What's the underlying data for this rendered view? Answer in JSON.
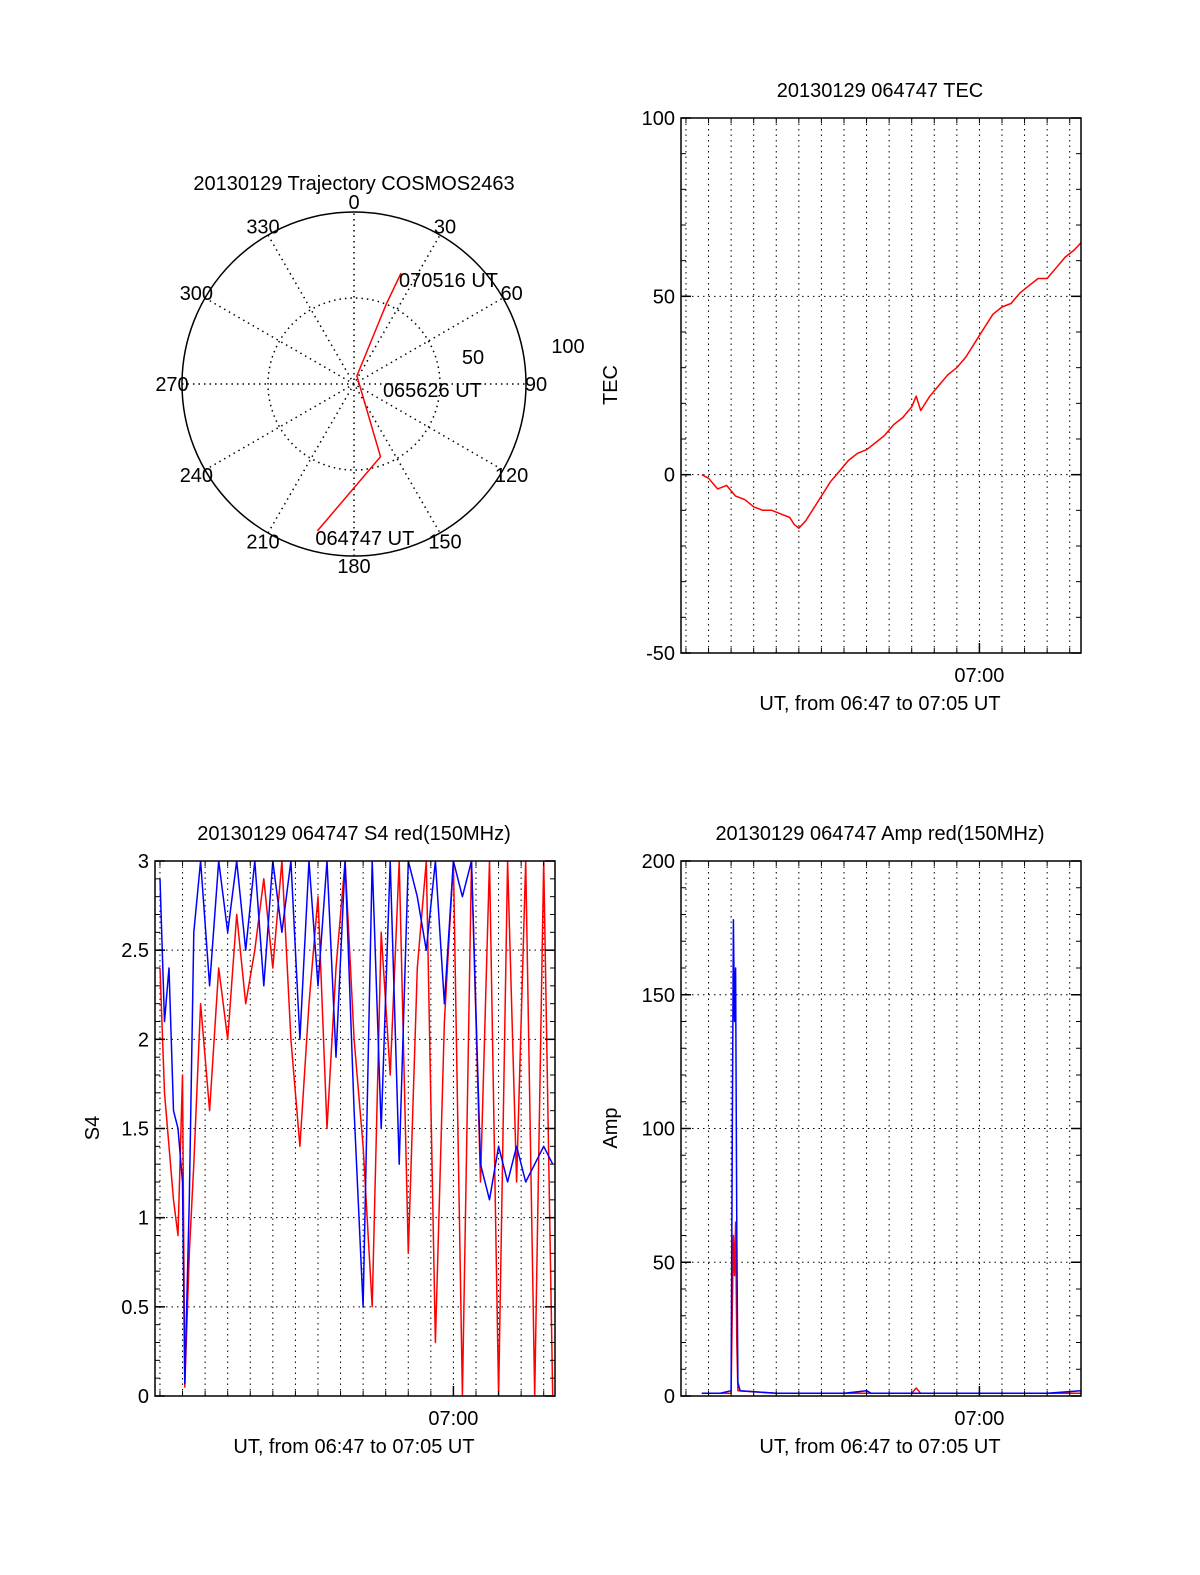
{
  "chart_data": [
    {
      "type": "polar",
      "title": "20130129 Trajectory COSMOS2463",
      "angle_labels": [
        "0",
        "30",
        "60",
        "90",
        "120",
        "150",
        "180",
        "210",
        "240",
        "270",
        "300",
        "330"
      ],
      "radial_labels": [
        "50",
        "100"
      ],
      "radial_max": 100,
      "series": [
        {
          "color": "#ff0000",
          "points": [
            {
              "az": 194,
              "r": 88
            },
            {
              "az": 160,
              "r": 45
            },
            {
              "az": 20,
              "r": 5
            },
            {
              "az": 22,
              "r": 50
            },
            {
              "az": 23,
              "r": 70
            }
          ]
        }
      ],
      "annotations": [
        {
          "text": "070516 UT",
          "az": 23,
          "r": 70
        },
        {
          "text": "065626 UT",
          "az": 88,
          "r": 18
        },
        {
          "text": "064747 UT",
          "az": 194,
          "r": 88
        }
      ]
    },
    {
      "type": "line",
      "title": "20130129 064747 TEC",
      "ylabel": "TEC",
      "xlabel": "UT, from 06:47 to 07:05 UT",
      "xlim": [
        406.78,
        424.5
      ],
      "ylim": [
        -50,
        100
      ],
      "yticks": [
        -50,
        0,
        50,
        100
      ],
      "xticks": [
        {
          "value": 420,
          "label": "07:00"
        }
      ],
      "grid": true,
      "series": [
        {
          "color": "#ff0000",
          "points": [
            [
              407.7,
              0
            ],
            [
              408.0,
              -1
            ],
            [
              408.4,
              -4
            ],
            [
              408.8,
              -3
            ],
            [
              409.2,
              -6
            ],
            [
              409.6,
              -7
            ],
            [
              410.0,
              -9
            ],
            [
              410.4,
              -10
            ],
            [
              410.8,
              -10
            ],
            [
              411.2,
              -11
            ],
            [
              411.6,
              -12
            ],
            [
              411.8,
              -14
            ],
            [
              412.0,
              -15
            ],
            [
              412.3,
              -13
            ],
            [
              412.6,
              -10
            ],
            [
              413.0,
              -6
            ],
            [
              413.4,
              -2
            ],
            [
              413.8,
              1
            ],
            [
              414.2,
              4
            ],
            [
              414.6,
              6
            ],
            [
              415.0,
              7
            ],
            [
              415.4,
              9
            ],
            [
              415.8,
              11
            ],
            [
              416.2,
              14
            ],
            [
              416.6,
              16
            ],
            [
              417.0,
              19
            ],
            [
              417.2,
              22
            ],
            [
              417.4,
              18
            ],
            [
              417.8,
              22
            ],
            [
              418.2,
              25
            ],
            [
              418.6,
              28
            ],
            [
              419.0,
              30
            ],
            [
              419.4,
              33
            ],
            [
              419.8,
              37
            ],
            [
              420.2,
              41
            ],
            [
              420.6,
              45
            ],
            [
              421.0,
              47
            ],
            [
              421.4,
              48
            ],
            [
              421.8,
              51
            ],
            [
              422.2,
              53
            ],
            [
              422.6,
              55
            ],
            [
              423.0,
              55
            ],
            [
              423.4,
              58
            ],
            [
              423.8,
              61
            ],
            [
              424.2,
              63
            ],
            [
              424.5,
              65
            ]
          ]
        }
      ]
    },
    {
      "type": "line",
      "title": "20130129 064747 S4 red(150MHz)",
      "ylabel": "S4",
      "xlabel": "UT, from 06:47 to 07:05 UT",
      "xlim": [
        406.78,
        424.5
      ],
      "ylim": [
        0,
        3
      ],
      "yticks": [
        0,
        0.5,
        1,
        1.5,
        2,
        2.5,
        3
      ],
      "ytick_labels": [
        "0",
        "0.5",
        "1",
        "1.5",
        "2",
        "2.5",
        "3"
      ],
      "xticks": [
        {
          "value": 420,
          "label": "07:00"
        }
      ],
      "grid": true,
      "series": [
        {
          "color": "#ff0000",
          "points": [
            [
              407.0,
              2.4
            ],
            [
              407.2,
              1.7
            ],
            [
              407.4,
              1.4
            ],
            [
              407.6,
              1.1
            ],
            [
              407.8,
              0.9
            ],
            [
              408.0,
              1.8
            ],
            [
              408.1,
              0.05
            ],
            [
              408.3,
              0.8
            ],
            [
              408.5,
              1.3
            ],
            [
              408.8,
              2.2
            ],
            [
              409.2,
              1.6
            ],
            [
              409.6,
              2.4
            ],
            [
              410.0,
              2.0
            ],
            [
              410.4,
              2.7
            ],
            [
              410.8,
              2.2
            ],
            [
              411.2,
              2.5
            ],
            [
              411.6,
              2.9
            ],
            [
              412.0,
              2.4
            ],
            [
              412.4,
              3.0
            ],
            [
              412.8,
              2.0
            ],
            [
              413.2,
              1.4
            ],
            [
              413.6,
              2.2
            ],
            [
              414.0,
              2.8
            ],
            [
              414.4,
              1.5
            ],
            [
              414.8,
              2.4
            ],
            [
              415.2,
              3.0
            ],
            [
              415.6,
              2.0
            ],
            [
              416.0,
              1.4
            ],
            [
              416.4,
              0.5
            ],
            [
              416.8,
              2.6
            ],
            [
              417.2,
              1.8
            ],
            [
              417.6,
              3.0
            ],
            [
              418.0,
              0.8
            ],
            [
              418.4,
              2.4
            ],
            [
              418.8,
              3.0
            ],
            [
              419.2,
              0.3
            ],
            [
              419.6,
              2.1
            ],
            [
              420.0,
              3.0
            ],
            [
              420.4,
              0.0
            ],
            [
              420.8,
              3.0
            ],
            [
              421.2,
              1.2
            ],
            [
              421.6,
              3.0
            ],
            [
              422.0,
              0.0
            ],
            [
              422.4,
              3.0
            ],
            [
              422.8,
              1.2
            ],
            [
              423.2,
              3.0
            ],
            [
              423.6,
              0.0
            ],
            [
              424.0,
              3.0
            ],
            [
              424.4,
              0.0
            ]
          ]
        },
        {
          "color": "#0000ff",
          "points": [
            [
              407.0,
              2.9
            ],
            [
              407.2,
              2.1
            ],
            [
              407.4,
              2.4
            ],
            [
              407.6,
              1.6
            ],
            [
              407.8,
              1.5
            ],
            [
              408.0,
              1.2
            ],
            [
              408.1,
              0.07
            ],
            [
              408.3,
              1.1
            ],
            [
              408.5,
              2.6
            ],
            [
              408.8,
              3.0
            ],
            [
              409.2,
              2.3
            ],
            [
              409.6,
              3.0
            ],
            [
              410.0,
              2.6
            ],
            [
              410.4,
              3.0
            ],
            [
              410.8,
              2.5
            ],
            [
              411.2,
              3.0
            ],
            [
              411.6,
              2.3
            ],
            [
              412.0,
              3.0
            ],
            [
              412.4,
              2.6
            ],
            [
              412.8,
              3.0
            ],
            [
              413.2,
              2.0
            ],
            [
              413.6,
              3.0
            ],
            [
              414.0,
              2.3
            ],
            [
              414.4,
              3.0
            ],
            [
              414.8,
              1.9
            ],
            [
              415.2,
              3.0
            ],
            [
              415.6,
              1.6
            ],
            [
              416.0,
              0.5
            ],
            [
              416.4,
              3.0
            ],
            [
              416.8,
              1.5
            ],
            [
              417.2,
              3.0
            ],
            [
              417.6,
              1.3
            ],
            [
              418.0,
              3.0
            ],
            [
              418.4,
              2.8
            ],
            [
              418.8,
              2.5
            ],
            [
              419.2,
              3.0
            ],
            [
              419.6,
              2.2
            ],
            [
              420.0,
              3.0
            ],
            [
              420.4,
              2.8
            ],
            [
              420.8,
              3.0
            ],
            [
              421.2,
              1.3
            ],
            [
              421.6,
              1.1
            ],
            [
              422.0,
              1.4
            ],
            [
              422.4,
              1.2
            ],
            [
              422.8,
              1.4
            ],
            [
              423.2,
              1.2
            ],
            [
              423.6,
              1.3
            ],
            [
              424.0,
              1.4
            ],
            [
              424.4,
              1.3
            ]
          ]
        }
      ]
    },
    {
      "type": "line",
      "title": "20130129 064747 Amp red(150MHz)",
      "ylabel": "Amp",
      "xlabel": "UT, from 06:47 to 07:05 UT",
      "xlim": [
        406.78,
        424.5
      ],
      "ylim": [
        0,
        200
      ],
      "yticks": [
        0,
        50,
        100,
        150,
        200
      ],
      "xticks": [
        {
          "value": 420,
          "label": "07:00"
        }
      ],
      "grid": true,
      "series": [
        {
          "color": "#ff0000",
          "points": [
            [
              407.7,
              1
            ],
            [
              408.5,
              1
            ],
            [
              409.0,
              1
            ],
            [
              409.05,
              30
            ],
            [
              409.1,
              60
            ],
            [
              409.15,
              45
            ],
            [
              409.2,
              65
            ],
            [
              409.25,
              20
            ],
            [
              409.3,
              2
            ],
            [
              411.0,
              1
            ],
            [
              414.0,
              1
            ],
            [
              417.0,
              1
            ],
            [
              417.2,
              3
            ],
            [
              417.4,
              1
            ],
            [
              420.0,
              1
            ],
            [
              424.5,
              1
            ]
          ]
        },
        {
          "color": "#0000ff",
          "points": [
            [
              407.7,
              1
            ],
            [
              408.5,
              1
            ],
            [
              409.0,
              2
            ],
            [
              409.05,
              90
            ],
            [
              409.1,
              178
            ],
            [
              409.15,
              140
            ],
            [
              409.2,
              160
            ],
            [
              409.25,
              60
            ],
            [
              409.3,
              5
            ],
            [
              409.4,
              2
            ],
            [
              411.0,
              1
            ],
            [
              414.0,
              1
            ],
            [
              415.0,
              2
            ],
            [
              415.2,
              1
            ],
            [
              417.0,
              1
            ],
            [
              420.0,
              1
            ],
            [
              423.0,
              1
            ],
            [
              424.5,
              2
            ]
          ]
        }
      ]
    }
  ]
}
